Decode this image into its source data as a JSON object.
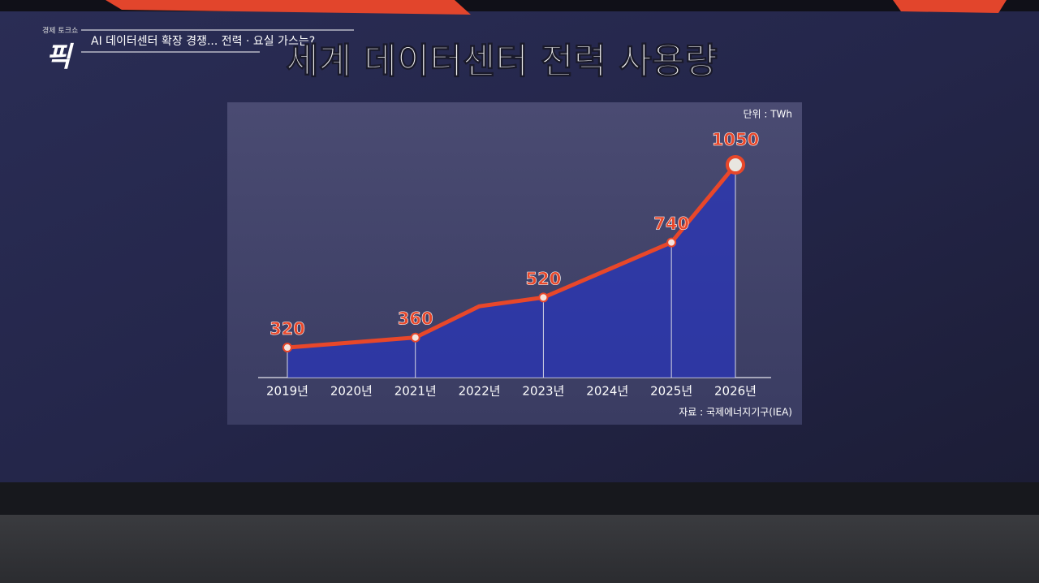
{
  "brand": {
    "show": "경제 토크쇼",
    "logo": "픽"
  },
  "caption": "AI 데이터센터 확장 경쟁... 전력 · 요실 가스는?",
  "chart_data": {
    "type": "area-line",
    "title": "세계 데이터센터 전력 사용량",
    "unit": "단위 : TWh",
    "source": "자료 : 국제에너지기구(IEA)",
    "categories": [
      "2019년",
      "2020년",
      "2021년",
      "2022년",
      "2023년",
      "2024년",
      "2025년",
      "2026년"
    ],
    "values": [
      320,
      340,
      360,
      485,
      520,
      630,
      740,
      1050
    ],
    "value_labels": [
      "320",
      null,
      "360",
      null,
      "520",
      null,
      "740",
      "1050"
    ],
    "color": "#e8472a",
    "area_color": "#2a35b8",
    "ylim": [
      200,
      1300
    ]
  }
}
